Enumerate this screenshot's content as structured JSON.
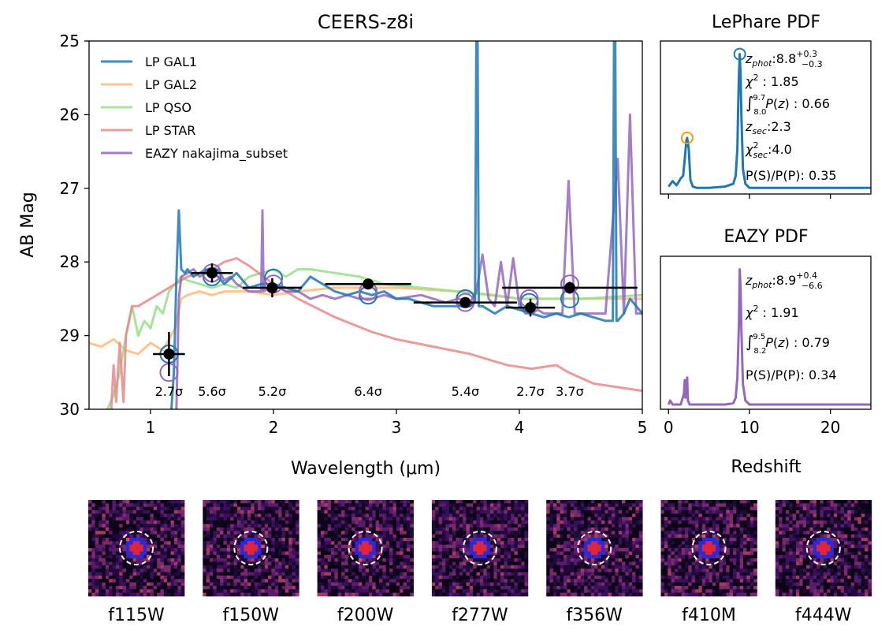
{
  "colors": {
    "gal1": "#1f77b4",
    "gal2": "#ffbb78",
    "qso": "#98df8a",
    "star": "#e68a8a",
    "eazy": "#9467bd",
    "obs": "#000000",
    "secondary_marker": "#ff9900"
  },
  "chart_data": [
    {
      "id": "sed",
      "type": "line",
      "title": "CEERS-z8i",
      "xlabel": "Wavelength (μm)",
      "ylabel": "AB Mag",
      "xlim": [
        0.5,
        5.0
      ],
      "ylim": [
        30.0,
        25.0
      ],
      "xticks": [
        "1",
        "2",
        "3",
        "4",
        "5"
      ],
      "yticks": [
        "25",
        "26",
        "27",
        "28",
        "29",
        "30"
      ],
      "legend_position": "top-left",
      "legend": [
        "LP GAL1",
        "LP GAL2",
        "LP QSO",
        "LP STAR",
        "EAZY nakajima_subset"
      ],
      "series": [
        {
          "name": "LP GAL1",
          "color_key": "gal1",
          "x": [
            1.17,
            1.19,
            1.2,
            1.21,
            1.23,
            1.25,
            1.28,
            1.3,
            1.35,
            1.4,
            1.45,
            1.5,
            1.55,
            1.6,
            1.7,
            1.8,
            1.9,
            2.0,
            2.1,
            2.2,
            2.3,
            2.4,
            2.5,
            2.6,
            2.7,
            2.8,
            2.9,
            3.0,
            3.1,
            3.2,
            3.3,
            3.4,
            3.5,
            3.6,
            3.64,
            3.65,
            3.66,
            3.67,
            3.7,
            3.8,
            3.9,
            4.0,
            4.1,
            4.2,
            4.3,
            4.4,
            4.5,
            4.6,
            4.7,
            4.76,
            4.77,
            4.78,
            4.79,
            4.8,
            4.85,
            4.9,
            4.95,
            5.0
          ],
          "y": [
            30.0,
            29.5,
            28.9,
            28.2,
            27.3,
            28.1,
            28.15,
            28.1,
            28.2,
            28.15,
            28.1,
            28.15,
            28.2,
            28.3,
            28.15,
            28.35,
            28.3,
            28.3,
            28.35,
            28.4,
            28.2,
            28.3,
            28.4,
            28.45,
            28.4,
            28.45,
            28.4,
            28.5,
            28.5,
            28.55,
            28.6,
            28.6,
            28.6,
            28.6,
            28.55,
            25.0,
            25.0,
            28.6,
            28.6,
            28.7,
            28.6,
            28.65,
            28.7,
            28.75,
            28.7,
            28.75,
            28.7,
            28.75,
            28.8,
            28.8,
            25.0,
            25.0,
            28.8,
            28.8,
            28.7,
            28.5,
            28.6,
            28.7
          ]
        },
        {
          "name": "LP GAL2",
          "color_key": "gal2",
          "x": [
            0.5,
            0.6,
            0.7,
            0.8,
            0.9,
            1.0,
            1.1,
            1.2,
            1.25,
            1.3,
            1.4,
            1.5,
            1.6,
            1.8,
            2.0,
            2.2,
            2.5,
            3.0,
            3.5,
            4.0,
            4.5,
            5.0
          ],
          "y": [
            29.1,
            29.15,
            29.05,
            29.2,
            29.25,
            29.1,
            29.2,
            28.9,
            28.5,
            28.45,
            28.4,
            28.45,
            28.4,
            28.4,
            28.45,
            28.4,
            28.35,
            28.35,
            28.4,
            28.5,
            28.5,
            28.5
          ]
        },
        {
          "name": "LP QSO",
          "color_key": "qso",
          "x": [
            0.65,
            0.7,
            0.75,
            0.8,
            0.85,
            0.9,
            0.95,
            1.0,
            1.05,
            1.1,
            1.15,
            1.2,
            1.25,
            1.3,
            1.4,
            1.5,
            1.6,
            1.7,
            1.8,
            1.9,
            2.0,
            2.1,
            2.2,
            2.3,
            2.5,
            2.7,
            2.9,
            3.2,
            3.5,
            3.8,
            4.0,
            4.5,
            5.0
          ],
          "y": [
            30.0,
            29.8,
            29.5,
            29.0,
            28.6,
            29.0,
            28.8,
            28.9,
            28.6,
            28.7,
            28.4,
            28.3,
            28.2,
            28.25,
            28.3,
            28.35,
            28.3,
            28.35,
            28.2,
            28.15,
            28.1,
            28.2,
            28.1,
            28.1,
            28.15,
            28.2,
            28.3,
            28.35,
            28.4,
            28.45,
            28.5,
            28.5,
            28.45
          ]
        },
        {
          "name": "LP STAR",
          "color_key": "star",
          "x": [
            0.68,
            0.7,
            0.72,
            0.75,
            0.78,
            0.8,
            0.85,
            0.9,
            1.0,
            1.1,
            1.2,
            1.3,
            1.4,
            1.5,
            1.6,
            1.7,
            1.8,
            2.0,
            2.2,
            2.5,
            2.8,
            3.0,
            3.3,
            3.6,
            3.9,
            4.1,
            4.3,
            4.4,
            4.6,
            4.8,
            5.0
          ],
          "y": [
            30.0,
            29.4,
            29.9,
            29.1,
            29.9,
            29.0,
            28.6,
            28.6,
            28.5,
            28.4,
            28.3,
            28.2,
            28.15,
            28.1,
            28.0,
            27.95,
            28.05,
            28.3,
            28.5,
            28.75,
            28.95,
            29.05,
            29.15,
            29.25,
            29.4,
            29.45,
            29.4,
            29.5,
            29.65,
            29.7,
            29.75
          ]
        },
        {
          "name": "EAZY nakajima_subset",
          "color_key": "eazy",
          "x": [
            1.21,
            1.22,
            1.23,
            1.25,
            1.3,
            1.35,
            1.4,
            1.45,
            1.5,
            1.55,
            1.6,
            1.65,
            1.7,
            1.8,
            1.9,
            1.91,
            1.92,
            2.0,
            2.1,
            2.2,
            2.3,
            2.4,
            2.5,
            2.6,
            2.7,
            2.8,
            2.9,
            3.0,
            3.2,
            3.4,
            3.5,
            3.6,
            3.65,
            3.7,
            3.75,
            3.8,
            3.85,
            3.9,
            3.95,
            4.0,
            4.05,
            4.1,
            4.15,
            4.2,
            4.25,
            4.3,
            4.35,
            4.4,
            4.45,
            4.5,
            4.6,
            4.7,
            4.8,
            4.85,
            4.9,
            4.95,
            5.0
          ],
          "y": [
            30.0,
            29.3,
            28.5,
            28.2,
            28.15,
            28.1,
            28.2,
            28.15,
            28.2,
            28.1,
            28.25,
            28.2,
            28.3,
            28.4,
            28.4,
            27.3,
            28.4,
            28.3,
            28.4,
            28.4,
            28.5,
            28.45,
            28.5,
            28.45,
            28.5,
            28.5,
            28.45,
            28.5,
            28.45,
            28.55,
            28.5,
            28.55,
            28.4,
            27.9,
            28.5,
            28.6,
            28.0,
            28.6,
            27.95,
            28.6,
            28.7,
            28.7,
            28.65,
            28.7,
            28.7,
            28.7,
            28.7,
            26.9,
            28.7,
            28.7,
            28.7,
            28.7,
            26.6,
            28.7,
            26.0,
            28.7,
            28.7
          ]
        }
      ],
      "model_photometry": {
        "lephare": [
          {
            "x": 1.15,
            "y": 29.25
          },
          {
            "x": 1.5,
            "y": 28.2
          },
          {
            "x": 2.0,
            "y": 28.22
          },
          {
            "x": 2.77,
            "y": 28.45
          },
          {
            "x": 3.56,
            "y": 28.5
          },
          {
            "x": 4.08,
            "y": 28.55
          },
          {
            "x": 4.41,
            "y": 28.5
          }
        ],
        "eazy": [
          {
            "x": 1.15,
            "y": 29.5
          },
          {
            "x": 1.5,
            "y": 28.15
          },
          {
            "x": 2.0,
            "y": 28.3
          },
          {
            "x": 2.77,
            "y": 28.4
          },
          {
            "x": 3.56,
            "y": 28.55
          },
          {
            "x": 4.08,
            "y": 28.5
          },
          {
            "x": 4.41,
            "y": 28.3
          }
        ]
      },
      "observed": [
        {
          "x": 1.15,
          "y": 29.25,
          "xerr": 0.13,
          "yerr": 0.3,
          "snr": "2.7σ"
        },
        {
          "x": 1.5,
          "y": 28.15,
          "xerr": 0.17,
          "yerr": 0.13,
          "snr": "5.6σ"
        },
        {
          "x": 1.99,
          "y": 28.35,
          "xerr": 0.24,
          "yerr": 0.13,
          "snr": "5.2σ"
        },
        {
          "x": 2.77,
          "y": 28.3,
          "xerr": 0.35,
          "yerr": 0.05,
          "snr": "6.4σ"
        },
        {
          "x": 3.56,
          "y": 28.55,
          "xerr": 0.42,
          "yerr": 0.05,
          "snr": "5.4σ"
        },
        {
          "x": 4.09,
          "y": 28.62,
          "xerr": 0.2,
          "yerr": 0.12,
          "snr": "2.7σ"
        },
        {
          "x": 4.41,
          "y": 28.35,
          "xerr": 0.55,
          "yerr": 0.08,
          "snr": "3.7σ"
        }
      ]
    },
    {
      "id": "lephare_pdf",
      "type": "line",
      "title": "LePhare PDF",
      "xlabel": "",
      "xlim": [
        -1,
        25
      ],
      "ylim": [
        0,
        1.05
      ],
      "series": [
        {
          "name": "LePhare P(z)",
          "color_key": "gal1",
          "x": [
            0,
            0.5,
            1,
            1.5,
            1.8,
            2.0,
            2.2,
            2.3,
            2.5,
            2.7,
            3.0,
            3.5,
            5,
            7,
            8,
            8.3,
            8.5,
            8.6,
            8.7,
            8.8,
            8.9,
            9.0,
            9.2,
            9.5,
            10,
            15,
            20,
            25
          ],
          "y": [
            0.02,
            0.06,
            0.03,
            0.08,
            0.1,
            0.22,
            0.36,
            0.38,
            0.3,
            0.07,
            0.02,
            0.01,
            0.01,
            0.02,
            0.04,
            0.1,
            0.3,
            0.6,
            0.85,
            1.0,
            0.85,
            0.55,
            0.15,
            0.04,
            0.01,
            0.01,
            0.01,
            0.01
          ]
        }
      ],
      "markers": [
        {
          "x": 8.8,
          "y": 1.0,
          "color_key": "gal1"
        },
        {
          "x": 2.3,
          "y": 0.38,
          "color_key": "secondary_marker"
        }
      ],
      "annotations": {
        "zphot": "8.8",
        "zphot_up": "+0.3",
        "zphot_lo": "−0.3",
        "chi2": "1.85",
        "int_lo": "8.0",
        "int_hi": "9.7",
        "int_val": "0.66",
        "zsec": "2.3",
        "chi2_sec": "4.0",
        "ps_pp": "P(S)/P(P): 0.35"
      }
    },
    {
      "id": "eazy_pdf",
      "type": "line",
      "title": "EAZY PDF",
      "xlabel": "Redshift",
      "xlim": [
        -1,
        25
      ],
      "ylim": [
        0,
        1.05
      ],
      "xticks": [
        "0",
        "10",
        "20"
      ],
      "series": [
        {
          "name": "EAZY P(z)",
          "color_key": "eazy",
          "x": [
            0,
            0.2,
            0.3,
            0.5,
            1,
            1.5,
            1.9,
            2.0,
            2.1,
            2.2,
            2.3,
            2.4,
            2.6,
            3,
            5,
            7,
            8,
            8.3,
            8.5,
            8.7,
            8.8,
            8.9,
            9.0,
            9.2,
            9.5,
            10,
            15,
            20,
            25
          ],
          "y": [
            0.0,
            0.03,
            0.02,
            0.0,
            0.0,
            0.0,
            0.08,
            0.18,
            0.05,
            0.12,
            0.2,
            0.03,
            0.0,
            0.0,
            0.0,
            0.0,
            0.01,
            0.05,
            0.2,
            0.6,
            1.0,
            0.85,
            0.55,
            0.15,
            0.03,
            0.0,
            0.0,
            0.0,
            0.0
          ]
        }
      ],
      "annotations": {
        "zphot": "8.9",
        "zphot_up": "+0.4",
        "zphot_lo": "−6.6",
        "chi2": "1.91",
        "int_lo": "8.2",
        "int_hi": "9.5",
        "int_val": "0.79",
        "ps_pp": "P(S)/P(P): 0.34"
      }
    }
  ],
  "cutouts": [
    {
      "label": "f115W",
      "seed": 11
    },
    {
      "label": "f150W",
      "seed": 23
    },
    {
      "label": "f200W",
      "seed": 37
    },
    {
      "label": "f277W",
      "seed": 41
    },
    {
      "label": "f356W",
      "seed": 53
    },
    {
      "label": "f410M",
      "seed": 67
    },
    {
      "label": "f444W",
      "seed": 79
    }
  ]
}
